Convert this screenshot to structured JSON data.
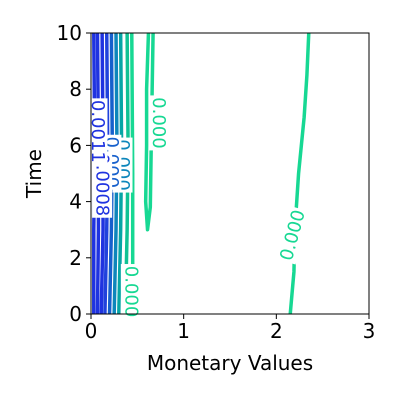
{
  "chart_data": {
    "type": "contour",
    "xlabel": "Monetary Values",
    "ylabel": "Time",
    "xlim": [
      0,
      3
    ],
    "ylim": [
      0,
      10
    ],
    "x_ticks": [
      0,
      1,
      2,
      3
    ],
    "y_ticks": [
      0,
      2,
      4,
      6,
      8,
      10
    ],
    "x_tick_labels": [
      "0",
      "1",
      "2",
      "3"
    ],
    "y_tick_labels": [
      "0",
      "2",
      "4",
      "6",
      "8",
      "10"
    ],
    "grid": false,
    "colors": {
      "low": "#1f33e0",
      "mid": "#0aa0b8",
      "high": "#17d893"
    },
    "contours": [
      {
        "color": "#1f33e0",
        "points": [
          [
            0.03,
            0
          ],
          [
            0.03,
            3
          ],
          [
            0.04,
            6
          ],
          [
            0.03,
            10
          ]
        ]
      },
      {
        "color": "#1f33e0",
        "points": [
          [
            0.07,
            0
          ],
          [
            0.08,
            3
          ],
          [
            0.08,
            6
          ],
          [
            0.07,
            10
          ]
        ]
      },
      {
        "color": "#1f33e0",
        "points": [
          [
            0.11,
            0
          ],
          [
            0.13,
            3
          ],
          [
            0.13,
            6
          ],
          [
            0.12,
            10
          ]
        ]
      },
      {
        "color": "#2042dc",
        "points": [
          [
            0.15,
            0
          ],
          [
            0.17,
            3
          ],
          [
            0.18,
            6
          ],
          [
            0.17,
            10
          ]
        ]
      },
      {
        "color": "#1660cc",
        "points": [
          [
            0.2,
            0
          ],
          [
            0.22,
            3
          ],
          [
            0.23,
            6
          ],
          [
            0.22,
            10
          ]
        ]
      },
      {
        "color": "#0d86bb",
        "points": [
          [
            0.25,
            0
          ],
          [
            0.27,
            3
          ],
          [
            0.28,
            6
          ],
          [
            0.27,
            10
          ]
        ]
      },
      {
        "color": "#07a5a5",
        "points": [
          [
            0.3,
            0
          ],
          [
            0.32,
            3
          ],
          [
            0.33,
            6
          ],
          [
            0.32,
            10
          ]
        ]
      },
      {
        "color": "#10c294",
        "points": [
          [
            0.37,
            0
          ],
          [
            0.39,
            3
          ],
          [
            0.4,
            6
          ],
          [
            0.39,
            10
          ]
        ]
      },
      {
        "color": "#17d893",
        "points": [
          [
            0.45,
            0
          ],
          [
            0.45,
            5
          ],
          [
            0.44,
            10
          ]
        ]
      },
      {
        "color": "#17d893",
        "points": [
          [
            0.62,
            10
          ],
          [
            0.6,
            8
          ],
          [
            0.6,
            6
          ],
          [
            0.59,
            4
          ],
          [
            0.61,
            3
          ],
          [
            0.64,
            3.8
          ],
          [
            0.65,
            6
          ],
          [
            0.66,
            8
          ],
          [
            0.67,
            10
          ]
        ]
      },
      {
        "color": "#17d893",
        "points": [
          [
            2.15,
            0
          ],
          [
            2.19,
            1.5
          ],
          [
            2.2,
            3
          ],
          [
            2.24,
            5
          ],
          [
            2.3,
            7
          ],
          [
            2.33,
            8.5
          ],
          [
            2.35,
            10
          ]
        ]
      }
    ],
    "contour_labels": [
      {
        "text": "0.000",
        "x": 0.73,
        "y": 6.8,
        "angle": 90,
        "color": "#17d893"
      },
      {
        "text": "0.000",
        "x": 2.18,
        "y": 2.8,
        "angle": -75,
        "color": "#17d893"
      },
      {
        "text": "0.000",
        "x": 0.43,
        "y": 0.8,
        "angle": 90,
        "color": "#17d893"
      },
      {
        "text": "0.000",
        "x": 0.34,
        "y": 5.3,
        "angle": 90,
        "color": "#0d86bb"
      },
      {
        "text": "0.000",
        "x": 0.22,
        "y": 5.4,
        "angle": 90,
        "color": "#1660cc"
      },
      {
        "text": "0.0008",
        "x": 0.12,
        "y": 4.6,
        "angle": 90,
        "color": "#1f33e0"
      },
      {
        "text": "0.0011",
        "x": 0.07,
        "y": 6.5,
        "angle": 90,
        "color": "#1f33e0"
      }
    ]
  }
}
